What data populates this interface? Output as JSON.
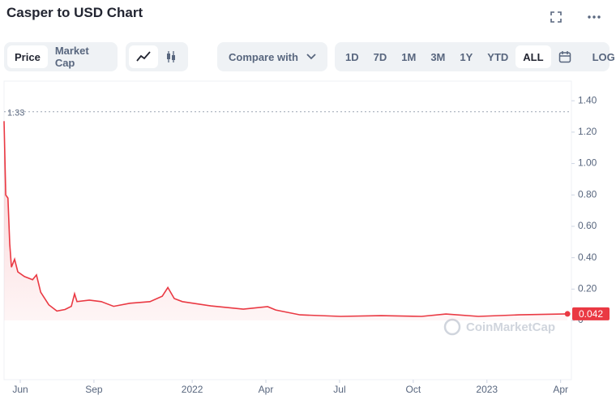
{
  "header": {
    "title": "Casper to USD Chart"
  },
  "toolbar": {
    "views": [
      "Price",
      "Market Cap"
    ],
    "compare": "Compare with",
    "ranges": [
      "1D",
      "7D",
      "1M",
      "3M",
      "1Y",
      "YTD",
      "ALL"
    ],
    "log": "LOG"
  },
  "watermark": "CoinMarketCap",
  "chart_data": {
    "type": "line",
    "color": "#ea3943",
    "x": [
      -0.66,
      -0.59,
      -0.5,
      -0.43,
      -0.36,
      -0.23,
      -0.1,
      0.17,
      0.5,
      0.66,
      0.83,
      1.16,
      1.49,
      1.82,
      2.08,
      2.21,
      2.31,
      2.81,
      3.3,
      3.8,
      4.46,
      5.28,
      5.78,
      6.01,
      6.27,
      6.6,
      7.76,
      9.08,
      10.07,
      10.4,
      11.39,
      13.04,
      14.69,
      16.34,
      17.33,
      18.65,
      20.3,
      22.28
    ],
    "values": [
      1.27,
      0.8,
      0.78,
      0.49,
      0.34,
      0.39,
      0.31,
      0.28,
      0.26,
      0.29,
      0.18,
      0.1,
      0.06,
      0.07,
      0.09,
      0.17,
      0.12,
      0.13,
      0.12,
      0.09,
      0.11,
      0.12,
      0.155,
      0.21,
      0.14,
      0.12,
      0.093,
      0.072,
      0.088,
      0.067,
      0.036,
      0.026,
      0.031,
      0.026,
      0.041,
      0.026,
      0.036,
      0.042
    ],
    "xlim": [
      -0.66,
      22.44
    ],
    "xticks": [
      {
        "value": 0,
        "label": "Jun"
      },
      {
        "value": 3,
        "label": "Sep"
      },
      {
        "value": 7,
        "label": "2022"
      },
      {
        "value": 10,
        "label": "Apr"
      },
      {
        "value": 13,
        "label": "Jul"
      },
      {
        "value": 16,
        "label": "Oct"
      },
      {
        "value": 19,
        "label": "2023"
      },
      {
        "value": 22,
        "label": "Apr"
      }
    ],
    "ylim": [
      -0.377,
      1.525
    ],
    "yticks": [
      0,
      {
        "value": 0.2,
        "label": "0.20"
      },
      {
        "value": 0.4,
        "label": "0.40"
      },
      {
        "value": 0.6,
        "label": "0.60"
      },
      {
        "value": 0.8,
        "label": "0.80"
      },
      {
        "value": 1,
        "label": "1.00"
      },
      {
        "value": 1.2,
        "label": "1.20"
      },
      {
        "value": 1.4,
        "label": "1.40"
      }
    ],
    "max_line": 1.33
  }
}
